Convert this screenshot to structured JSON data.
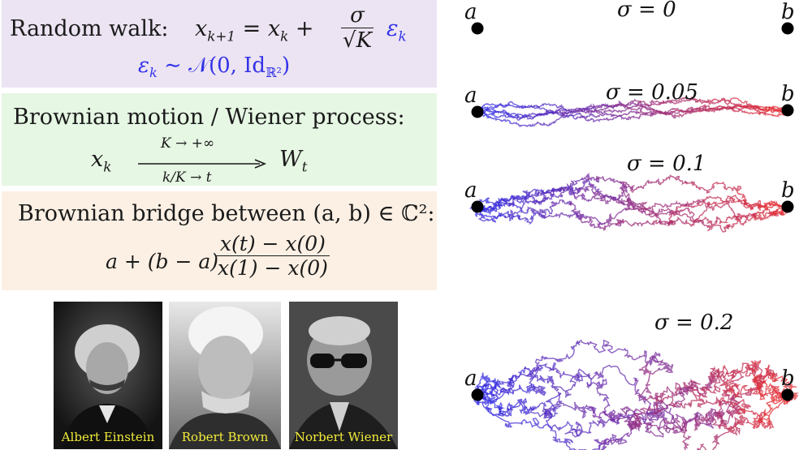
{
  "random_walk": {
    "label": "Random walk:",
    "eq_lhs": "x",
    "eq_lhs_sub": "k+1",
    "eq_eq": "= x",
    "eq_xk_sub": "k",
    "eq_plus": "+",
    "sigma": "σ",
    "sqrtK": "√K",
    "eps": "ε",
    "eps_sub": "k",
    "noise_eps": "ε",
    "noise_eps_sub": "k",
    "noise_dist": "∼ 𝒩(0, Id",
    "noise_space": "ℝ²",
    "noise_close": ")"
  },
  "brownian_motion": {
    "label": "Brownian motion / Wiener process:",
    "xk": "x",
    "xk_sub": "k",
    "arrow_top": "K → +∞",
    "arrow_bottom": "k/K → t",
    "Wt": "W",
    "Wt_sub": "t"
  },
  "brownian_bridge": {
    "label": "Brownian bridge between (a, b) ∈ ℂ²:",
    "prefix": "a + (b − a)",
    "numerator": "x(t) − x(0)",
    "denominator": "x(1) − x(0)"
  },
  "portraits": [
    {
      "name": "Albert Einstein"
    },
    {
      "name": "Robert Brown"
    },
    {
      "name": "Norbert Wiener"
    }
  ],
  "walks": [
    {
      "sigma_label": "σ = 0",
      "start_label": "a",
      "end_label": "b",
      "sigma": 0
    },
    {
      "sigma_label": "σ = 0.05",
      "start_label": "a",
      "end_label": "b",
      "sigma": 0.05
    },
    {
      "sigma_label": "σ = 0.1",
      "start_label": "a",
      "end_label": "b",
      "sigma": 0.1
    },
    {
      "sigma_label": "σ = 0.2",
      "start_label": "a",
      "end_label": "b",
      "sigma": 0.2
    }
  ],
  "colors": {
    "start": "#2a2ae8",
    "end": "#e83030"
  }
}
